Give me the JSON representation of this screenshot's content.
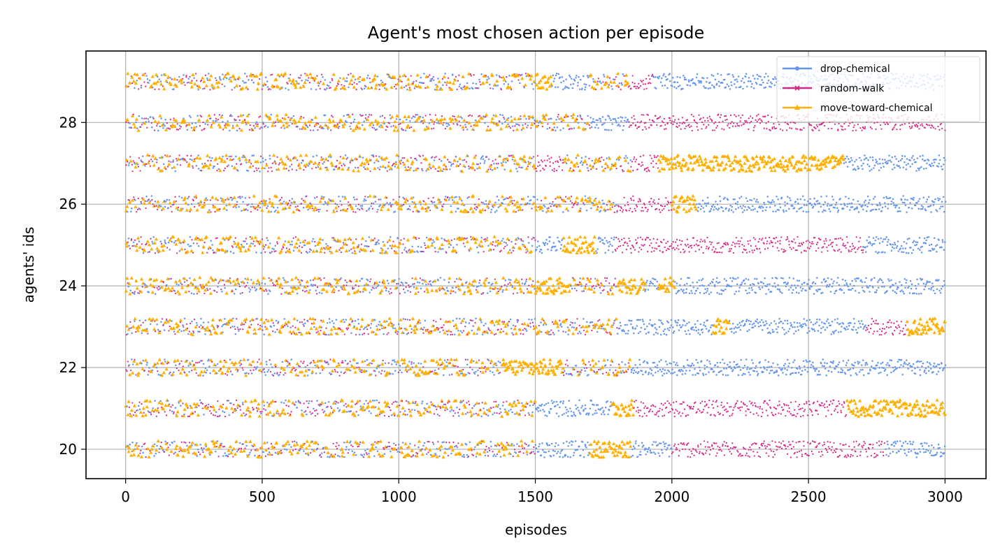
{
  "chart_data": {
    "type": "scatter",
    "title": "Agent's most chosen action per episode",
    "xlabel": "episodes",
    "ylabel": "agents' ids",
    "xlim": [
      -145,
      3150
    ],
    "ylim": [
      19.28,
      29.75
    ],
    "xticks": [
      0,
      500,
      1000,
      1500,
      2000,
      2500,
      3000
    ],
    "yticks": [
      20,
      22,
      24,
      26,
      28
    ],
    "grid": true,
    "legend_position": "top-right",
    "agents": [
      20,
      21,
      22,
      23,
      24,
      25,
      26,
      27,
      28,
      29
    ],
    "episodes_range": [
      0,
      3000
    ],
    "jitter": 0.2,
    "series": [
      {
        "name": "drop-chemical",
        "color": "#6495ed",
        "marker": "dot"
      },
      {
        "name": "random-walk",
        "color": "#d62585",
        "marker": "x"
      },
      {
        "name": "move-toward-chemical",
        "color": "#ffaf00",
        "marker": "triangle"
      }
    ],
    "segments": {
      "29": [
        [
          0,
          1500,
          "mixed"
        ],
        [
          1500,
          1560,
          "move-toward-chemical"
        ],
        [
          1560,
          1700,
          "drop-chemical"
        ],
        [
          1700,
          1850,
          "mixed"
        ],
        [
          1850,
          1930,
          "random-walk"
        ],
        [
          1930,
          3000,
          "drop-chemical"
        ]
      ],
      "28": [
        [
          0,
          1500,
          "mixed"
        ],
        [
          1500,
          1700,
          "mixed"
        ],
        [
          1700,
          1840,
          "drop-chemical"
        ],
        [
          1840,
          3000,
          "random-walk"
        ]
      ],
      "27": [
        [
          0,
          1500,
          "mixed"
        ],
        [
          1500,
          1600,
          "random-walk"
        ],
        [
          1600,
          1850,
          "mixed"
        ],
        [
          1850,
          1950,
          "random-walk"
        ],
        [
          1950,
          2630,
          "move-toward-chemical"
        ],
        [
          2630,
          3000,
          "drop-chemical"
        ]
      ],
      "26": [
        [
          0,
          1800,
          "mixed"
        ],
        [
          1800,
          2000,
          "random-walk"
        ],
        [
          2000,
          2090,
          "move-toward-chemical"
        ],
        [
          2090,
          3000,
          "drop-chemical"
        ]
      ],
      "25": [
        [
          0,
          1500,
          "mixed"
        ],
        [
          1500,
          1600,
          "drop-chemical"
        ],
        [
          1600,
          1720,
          "move-toward-chemical"
        ],
        [
          1720,
          1790,
          "drop-chemical"
        ],
        [
          1790,
          2700,
          "random-walk"
        ],
        [
          2700,
          3000,
          "drop-chemical"
        ]
      ],
      "24": [
        [
          0,
          1500,
          "mixed"
        ],
        [
          1500,
          1620,
          "move-toward-chemical"
        ],
        [
          1620,
          1800,
          "mixed"
        ],
        [
          1800,
          1900,
          "move-toward-chemical"
        ],
        [
          1900,
          1950,
          "drop-chemical"
        ],
        [
          1950,
          2010,
          "move-toward-chemical"
        ],
        [
          2010,
          3000,
          "drop-chemical"
        ]
      ],
      "23": [
        [
          0,
          1500,
          "mixed"
        ],
        [
          1500,
          1800,
          "mixed"
        ],
        [
          1800,
          2150,
          "drop-chemical"
        ],
        [
          2150,
          2210,
          "move-toward-chemical"
        ],
        [
          2210,
          2710,
          "drop-chemical"
        ],
        [
          2710,
          2860,
          "random-walk"
        ],
        [
          2860,
          3000,
          "move-toward-chemical"
        ]
      ],
      "22": [
        [
          0,
          1380,
          "mixed"
        ],
        [
          1380,
          1600,
          "move-toward-chemical"
        ],
        [
          1600,
          1850,
          "mixed"
        ],
        [
          1850,
          3000,
          "drop-chemical"
        ]
      ],
      "21": [
        [
          0,
          1500,
          "mixed"
        ],
        [
          1500,
          1780,
          "drop-chemical"
        ],
        [
          1780,
          1860,
          "move-toward-chemical"
        ],
        [
          1860,
          2640,
          "random-walk"
        ],
        [
          2640,
          3000,
          "move-toward-chemical"
        ]
      ],
      "20": [
        [
          0,
          1500,
          "mixed"
        ],
        [
          1500,
          1700,
          "drop-chemical"
        ],
        [
          1700,
          1850,
          "move-toward-chemical"
        ],
        [
          1850,
          2000,
          "drop-chemical"
        ],
        [
          2000,
          2780,
          "random-walk"
        ],
        [
          2780,
          3000,
          "drop-chemical"
        ]
      ]
    }
  }
}
